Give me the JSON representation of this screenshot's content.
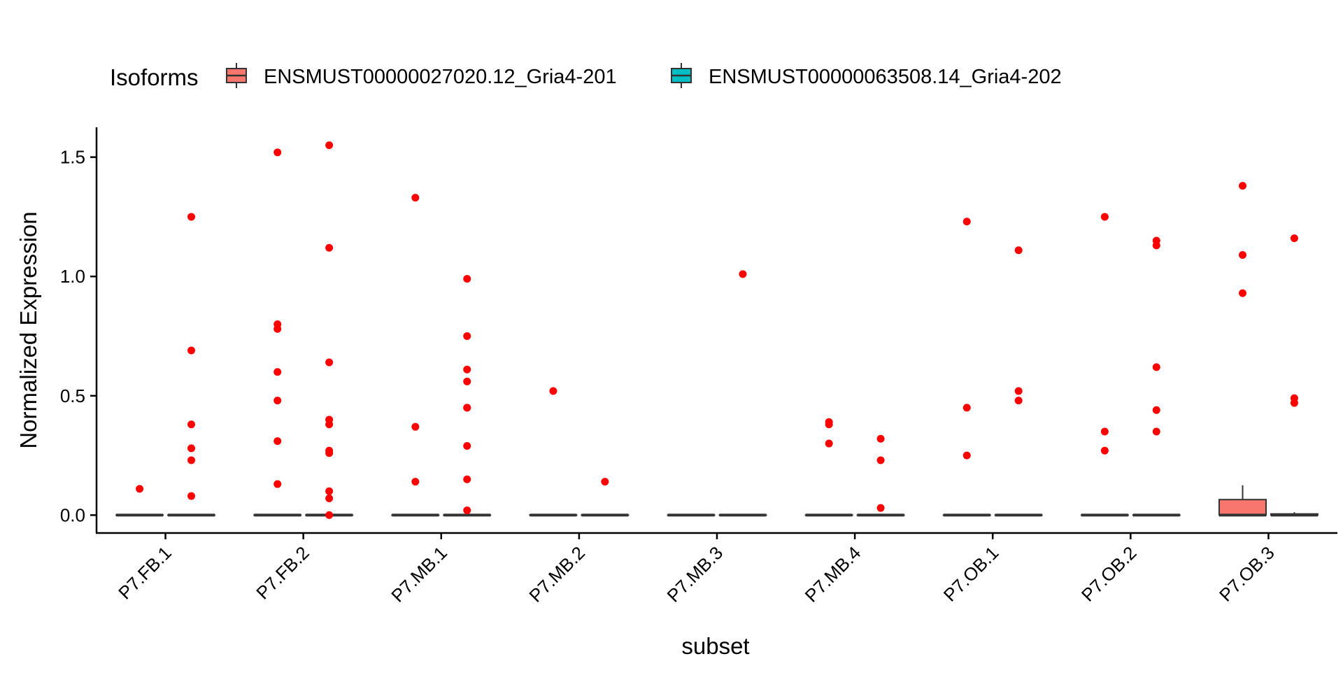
{
  "chart_data": {
    "type": "box",
    "title": "",
    "xlabel": "subset",
    "ylabel": "Normalized Expression",
    "ylim": [
      -0.075,
      1.625
    ],
    "yticks": [
      0.0,
      0.5,
      1.0,
      1.5
    ],
    "ytick_labels": [
      "0.0",
      "0.5",
      "1.0",
      "1.5"
    ],
    "categories": [
      "P7.FB.1",
      "P7.FB.2",
      "P7.MB.1",
      "P7.MB.2",
      "P7.MB.3",
      "P7.MB.4",
      "P7.OB.1",
      "P7.OB.2",
      "P7.OB.3"
    ],
    "legend": {
      "title": "Isoforms",
      "position": "top",
      "entries": [
        "ENSMUST00000027020.12_Gria4-201",
        "ENSMUST00000063508.14_Gria4-202"
      ]
    },
    "colors": {
      "fill": [
        "#F8766D",
        "#00BFC4"
      ],
      "outlier": "#FF0000",
      "line": "#333333"
    },
    "grid": false,
    "series": [
      {
        "name": "ENSMUST00000027020.12_Gria4-201",
        "boxes": [
          {
            "q1": 0,
            "median": 0,
            "q3": 0,
            "whisker_low": 0,
            "whisker_high": 0,
            "outliers": [
              0.11
            ]
          },
          {
            "q1": 0,
            "median": 0,
            "q3": 0,
            "whisker_low": 0,
            "whisker_high": 0,
            "outliers": [
              1.52,
              0.8,
              0.78,
              0.6,
              0.48,
              0.31,
              0.13
            ]
          },
          {
            "q1": 0,
            "median": 0,
            "q3": 0,
            "whisker_low": 0,
            "whisker_high": 0,
            "outliers": [
              1.33,
              0.37,
              0.14
            ]
          },
          {
            "q1": 0,
            "median": 0,
            "q3": 0,
            "whisker_low": 0,
            "whisker_high": 0,
            "outliers": [
              0.52
            ]
          },
          {
            "q1": 0,
            "median": 0,
            "q3": 0,
            "whisker_low": 0,
            "whisker_high": 0,
            "outliers": []
          },
          {
            "q1": 0,
            "median": 0,
            "q3": 0,
            "whisker_low": 0,
            "whisker_high": 0,
            "outliers": [
              0.39,
              0.38,
              0.3
            ]
          },
          {
            "q1": 0,
            "median": 0,
            "q3": 0,
            "whisker_low": 0,
            "whisker_high": 0,
            "outliers": [
              1.23,
              0.45,
              0.25
            ]
          },
          {
            "q1": 0,
            "median": 0,
            "q3": 0,
            "whisker_low": 0,
            "whisker_high": 0,
            "outliers": [
              1.25,
              0.35,
              0.27
            ]
          },
          {
            "q1": 0,
            "median": 0,
            "q3": 0.065,
            "whisker_low": 0,
            "whisker_high": 0.125,
            "outliers": [
              1.38,
              1.09,
              0.93
            ]
          }
        ]
      },
      {
        "name": "ENSMUST00000063508.14_Gria4-202",
        "boxes": [
          {
            "q1": 0,
            "median": 0,
            "q3": 0,
            "whisker_low": 0,
            "whisker_high": 0,
            "outliers": [
              1.25,
              0.69,
              0.38,
              0.28,
              0.23,
              0.08
            ]
          },
          {
            "q1": 0,
            "median": 0,
            "q3": 0,
            "whisker_low": 0,
            "whisker_high": 0,
            "outliers": [
              1.55,
              1.12,
              0.64,
              0.4,
              0.38,
              0.27,
              0.26,
              0.1,
              0.07,
              0.0
            ]
          },
          {
            "q1": 0,
            "median": 0,
            "q3": 0,
            "whisker_low": 0,
            "whisker_high": 0,
            "outliers": [
              0.99,
              0.75,
              0.61,
              0.56,
              0.45,
              0.45,
              0.29,
              0.15,
              0.02
            ]
          },
          {
            "q1": 0,
            "median": 0,
            "q3": 0,
            "whisker_low": 0,
            "whisker_high": 0,
            "outliers": [
              0.14
            ]
          },
          {
            "q1": 0,
            "median": 0,
            "q3": 0,
            "whisker_low": 0,
            "whisker_high": 0,
            "outliers": [
              1.01
            ]
          },
          {
            "q1": 0,
            "median": 0,
            "q3": 0,
            "whisker_low": 0,
            "whisker_high": 0,
            "outliers": [
              0.32,
              0.23,
              0.03
            ]
          },
          {
            "q1": 0,
            "median": 0,
            "q3": 0,
            "whisker_low": 0,
            "whisker_high": 0,
            "outliers": [
              1.11,
              0.52,
              0.48
            ]
          },
          {
            "q1": 0,
            "median": 0,
            "q3": 0,
            "whisker_low": 0,
            "whisker_high": 0,
            "outliers": [
              1.15,
              1.13,
              0.62,
              0.44,
              0.35
            ]
          },
          {
            "q1": 0,
            "median": 0,
            "q3": 0.005,
            "whisker_low": 0,
            "whisker_high": 0.012,
            "outliers": [
              1.16,
              0.49,
              0.47
            ]
          }
        ]
      }
    ]
  }
}
